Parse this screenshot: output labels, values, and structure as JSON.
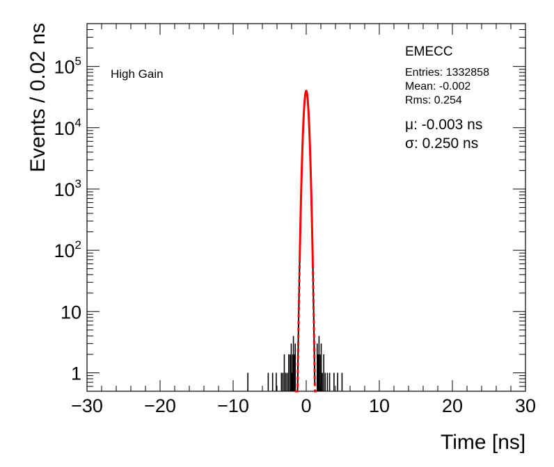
{
  "chart_data": {
    "type": "histogram",
    "xlabel": "Time [ns]",
    "ylabel": "Events / 0.02 ns",
    "xlim": [
      -30,
      30
    ],
    "ylim": [
      0.5,
      500000
    ],
    "y_scale": "log",
    "x_ticks": [
      -30,
      -20,
      -10,
      0,
      10,
      20,
      30
    ],
    "x_tick_labels": [
      "−30",
      "−20",
      "−10",
      "0",
      "10",
      "20",
      "30"
    ],
    "y_ticks": [
      {
        "value": 1,
        "base": "1",
        "exp": ""
      },
      {
        "value": 10,
        "base": "10",
        "exp": ""
      },
      {
        "value": 100,
        "base": "10",
        "exp": "2"
      },
      {
        "value": 1000,
        "base": "10",
        "exp": "3"
      },
      {
        "value": 10000,
        "base": "10",
        "exp": "4"
      },
      {
        "value": 100000,
        "base": "10",
        "exp": "5"
      }
    ],
    "series": [
      {
        "kind": "histogram",
        "color": "#000000",
        "bins": [
          [
            -7.99,
            1
          ],
          [
            -5.2,
            1
          ],
          [
            -4.6,
            1
          ],
          [
            -4.1,
            1
          ],
          [
            -3.4,
            1
          ],
          [
            -3.2,
            1
          ],
          [
            -3.0,
            2
          ],
          [
            -2.8,
            1
          ],
          [
            -2.6,
            1
          ],
          [
            -2.4,
            2
          ],
          [
            -2.2,
            2
          ],
          [
            -2.05,
            3
          ],
          [
            -1.95,
            1
          ],
          [
            -1.85,
            2
          ],
          [
            -1.75,
            4
          ],
          [
            -1.6,
            2
          ],
          [
            -1.5,
            3
          ],
          [
            1.5,
            3
          ],
          [
            1.65,
            2
          ],
          [
            1.75,
            4
          ],
          [
            1.9,
            2
          ],
          [
            2.05,
            3
          ],
          [
            2.2,
            1
          ],
          [
            2.4,
            2
          ],
          [
            2.6,
            1
          ],
          [
            2.9,
            1
          ],
          [
            3.2,
            1
          ],
          [
            3.8,
            1
          ],
          [
            4.3,
            1
          ],
          [
            4.9,
            1
          ]
        ],
        "core": {
          "mean": -0.003,
          "sigma": 0.25,
          "peak": 40000,
          "x_min": -1.45,
          "x_max": 1.45
        }
      },
      {
        "kind": "fit",
        "color": "#ff0000",
        "function": "gaussian",
        "mean": -0.003,
        "sigma": 0.25,
        "peak": 40000,
        "solid_range": [
          -0.9,
          0.9
        ],
        "dashed_range": [
          -1.55,
          1.55
        ]
      }
    ],
    "region_label": "EMECC",
    "gain_label": "High Gain",
    "stats": {
      "entries": "Entries: 1332858",
      "mean": "Mean: -0.002",
      "rms": "Rms: 0.254"
    },
    "fit_results": {
      "mu": "μ: -0.003 ns",
      "sigma": "σ: 0.250 ns"
    }
  }
}
